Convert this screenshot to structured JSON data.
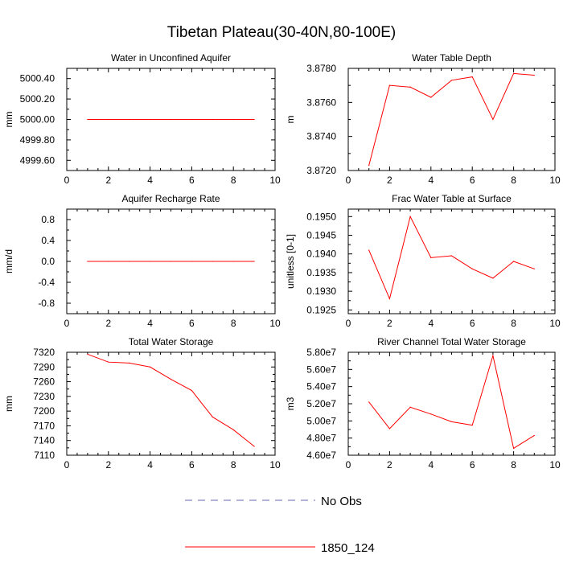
{
  "title": "Tibetan Plateau(30-40N,80-100E)",
  "chart_data": [
    {
      "type": "line",
      "title": "Water in Unconfined Aquifer",
      "ylabel": "mm",
      "xlim": [
        0,
        10
      ],
      "xticks": [
        0,
        2,
        4,
        6,
        8,
        10
      ],
      "ylim": [
        4999.5,
        5000.5
      ],
      "yticks": [
        "4999.60",
        "4999.80",
        "5000.00",
        "5000.20",
        "5000.40"
      ],
      "x": [
        1,
        2,
        3,
        4,
        5,
        6,
        7,
        8,
        9
      ],
      "series": [
        {
          "name": "1850_124",
          "color": "#ff0000",
          "values": [
            5000,
            5000,
            5000,
            5000,
            5000,
            5000,
            5000,
            5000,
            5000
          ]
        }
      ]
    },
    {
      "type": "line",
      "title": "Water Table Depth",
      "ylabel": "m",
      "xlim": [
        0,
        10
      ],
      "xticks": [
        0,
        2,
        4,
        6,
        8,
        10
      ],
      "ylim": [
        3.872,
        3.878
      ],
      "yticks": [
        "3.8720",
        "3.8740",
        "3.8760",
        "3.8780"
      ],
      "x": [
        1,
        2,
        3,
        4,
        5,
        6,
        7,
        8,
        9
      ],
      "series": [
        {
          "name": "1850_124",
          "color": "#ff0000",
          "values": [
            3.8723,
            3.877,
            3.8769,
            3.8763,
            3.8773,
            3.8775,
            3.875,
            3.8777,
            3.8776
          ]
        }
      ]
    },
    {
      "type": "line",
      "title": "Aquifer Recharge Rate",
      "ylabel": "mm/d",
      "xlim": [
        0,
        10
      ],
      "xticks": [
        0,
        2,
        4,
        6,
        8,
        10
      ],
      "ylim": [
        -1,
        1
      ],
      "yticks": [
        "-0.8",
        "-0.4",
        "0.0",
        "0.4",
        "0.8"
      ],
      "x": [
        1,
        2,
        3,
        4,
        5,
        6,
        7,
        8,
        9
      ],
      "series": [
        {
          "name": "1850_124",
          "color": "#ff0000",
          "values": [
            0,
            0,
            0,
            0,
            0,
            0,
            0,
            0,
            0
          ]
        }
      ]
    },
    {
      "type": "line",
      "title": "Frac Water Table at Surface",
      "ylabel": "unitless [0-1]",
      "xlim": [
        0,
        10
      ],
      "xticks": [
        0,
        2,
        4,
        6,
        8,
        10
      ],
      "ylim": [
        0.1924,
        0.1952
      ],
      "yticks": [
        "0.1925",
        "0.1930",
        "0.1935",
        "0.1940",
        "0.1945",
        "0.1950"
      ],
      "x": [
        1,
        2,
        3,
        4,
        5,
        6,
        7,
        8,
        9
      ],
      "series": [
        {
          "name": "1850_124",
          "color": "#ff0000",
          "values": [
            0.1941,
            0.1928,
            0.195,
            0.1939,
            0.19395,
            0.1936,
            0.19335,
            0.1938,
            0.1936
          ]
        }
      ]
    },
    {
      "type": "line",
      "title": "Total Water Storage",
      "ylabel": "mm",
      "xlim": [
        0,
        10
      ],
      "xticks": [
        0,
        2,
        4,
        6,
        8,
        10
      ],
      "ylim": [
        7110,
        7320
      ],
      "yticks": [
        "7110",
        "7140",
        "7170",
        "7200",
        "7230",
        "7260",
        "7290",
        "7320"
      ],
      "x": [
        1,
        2,
        3,
        4,
        5,
        6,
        7,
        8,
        9
      ],
      "series": [
        {
          "name": "1850_124",
          "color": "#ff0000",
          "values": [
            7316,
            7300,
            7298,
            7290,
            7265,
            7242,
            7188,
            7162,
            7128
          ]
        }
      ]
    },
    {
      "type": "line",
      "title": "River Channel Total Water Storage",
      "ylabel": "m3",
      "xlim": [
        0,
        10
      ],
      "xticks": [
        0,
        2,
        4,
        6,
        8,
        10
      ],
      "ylim": [
        46000000.0,
        58000000.0
      ],
      "yticks": [
        "4.60e7",
        "4.80e7",
        "5.00e7",
        "5.20e7",
        "5.40e7",
        "5.60e7",
        "5.80e7"
      ],
      "x": [
        1,
        2,
        3,
        4,
        5,
        6,
        7,
        8,
        9
      ],
      "series": [
        {
          "name": "1850_124",
          "color": "#ff0000",
          "values": [
            52200000,
            49100000,
            51600000,
            50800000,
            49900000,
            49500000,
            57600000,
            46800000,
            48300000
          ]
        }
      ]
    }
  ],
  "legend": [
    {
      "label": "No Obs",
      "color": "#6a6ab0",
      "dash": true
    },
    {
      "label": "1850_124",
      "color": "#ff0000",
      "dash": false
    }
  ]
}
